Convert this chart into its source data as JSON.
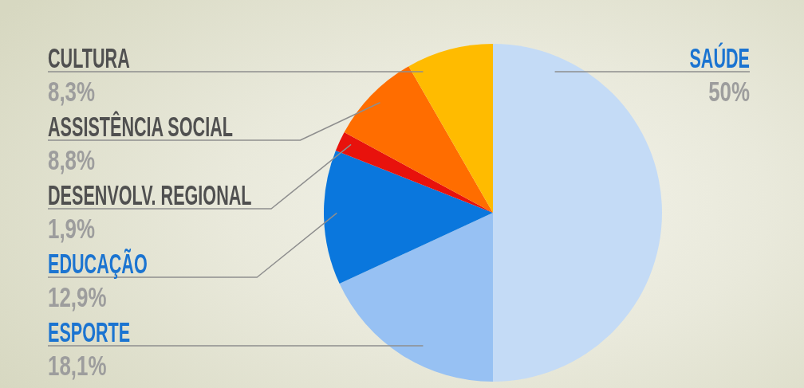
{
  "chart_data": {
    "type": "pie",
    "categories": [
      "SAÚDE",
      "ESPORTE",
      "EDUCAÇÃO",
      "DESENVOLV. REGIONAL",
      "ASSISTÊNCIA SOCIAL",
      "CULTURA"
    ],
    "values": [
      50,
      18.1,
      12.9,
      1.9,
      8.8,
      8.3
    ],
    "colors": [
      "#c4dbf6",
      "#97c1f3",
      "#0a77dd",
      "#e8120c",
      "#ff6d00",
      "#ffbb00"
    ],
    "value_labels": [
      "50%",
      "18,1%",
      "12,9%",
      "1,9%",
      "8,8%",
      "8,3%"
    ]
  }
}
